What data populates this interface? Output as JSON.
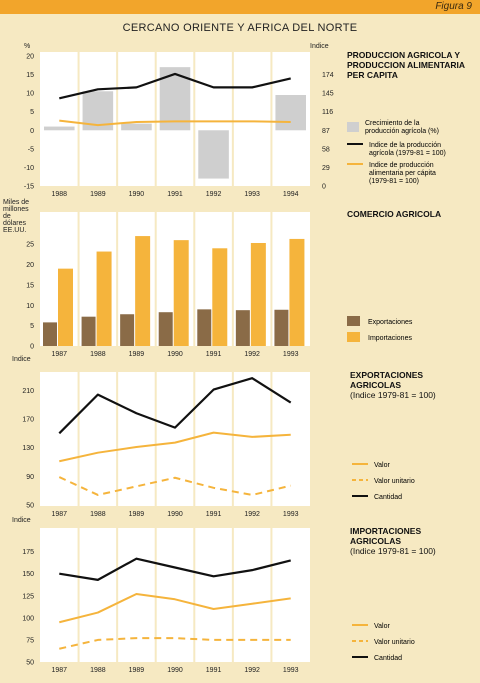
{
  "figure_label": "Figura 9",
  "page_title": "CERCANO ORIENTE Y AFRICA DEL NORTE",
  "colors": {
    "background": "#f6e9c2",
    "panel": "#ffffff",
    "header": "#f2a52b",
    "gray_bar": "#cfcfcf",
    "black": "#111111",
    "orange": "#f5b43c",
    "brown": "#8a6b47"
  },
  "chart_data": [
    {
      "type": "bar+line",
      "title_lines": [
        "PRODUCCION AGRICOLA Y",
        "PRODUCCION ALIMENTARIA",
        "PER CAPITA"
      ],
      "left_unit": "%",
      "right_unit": "Indice",
      "categories": [
        "1988",
        "1989",
        "1990",
        "1991",
        "1992",
        "1993",
        "1994"
      ],
      "left_ticks": [
        "20",
        "15",
        "10",
        "5",
        "0",
        "-5",
        "-10",
        "-15"
      ],
      "right_ticks": [
        "174",
        "145",
        "116",
        "87",
        "58",
        "29",
        "0"
      ],
      "ylim_left": [
        -15,
        20
      ],
      "ylim_right": [
        0,
        203
      ],
      "series": [
        {
          "name": "Crecimiento de la producción agrícola (%)",
          "kind": "bar",
          "axis": "left",
          "color": "#cfcfcf",
          "values": [
            1,
            10.5,
            1.8,
            17,
            -13,
            0,
            9.5
          ]
        },
        {
          "name": "Indice de la producción agrícola (1979-81 = 100)",
          "kind": "line",
          "axis": "right",
          "color": "#111111",
          "values": [
            137,
            151,
            154,
            175,
            154,
            154,
            168
          ]
        },
        {
          "name": "Indice de producción alimentaria per cápita (1979-81 = 100)",
          "kind": "line",
          "axis": "right",
          "color": "#f5b43c",
          "values": [
            102,
            95,
            100,
            101,
            101,
            101,
            100
          ]
        }
      ]
    },
    {
      "type": "bar",
      "title_lines": [
        "COMERCIO AGRICOLA"
      ],
      "left_unit_lines": [
        "Miles de",
        "millones",
        "de",
        "dólares",
        "EE.UU."
      ],
      "categories": [
        "1987",
        "1988",
        "1989",
        "1990",
        "1991",
        "1992",
        "1993"
      ],
      "left_ticks": [
        "25",
        "20",
        "15",
        "10",
        "5",
        "0"
      ],
      "ylim": [
        0,
        28
      ],
      "series": [
        {
          "name": "Exportaciones",
          "color": "#8a6b47",
          "values": [
            5.8,
            7.2,
            7.8,
            8.3,
            9.0,
            8.8,
            8.9
          ]
        },
        {
          "name": "Importaciones",
          "color": "#f5b43c",
          "values": [
            19,
            23.2,
            27,
            26,
            24,
            25.3,
            26.3
          ]
        }
      ]
    },
    {
      "type": "line",
      "title_lines": [
        "EXPORTACIONES",
        "AGRICOLAS"
      ],
      "subtitle": "(Indice 1979-81 = 100)",
      "left_unit": "Indice",
      "categories": [
        "1987",
        "1988",
        "1989",
        "1990",
        "1991",
        "1992",
        "1993"
      ],
      "left_ticks": [
        "210",
        "170",
        "130",
        "90",
        "50"
      ],
      "ylim": [
        50,
        230
      ],
      "series": [
        {
          "name": "Valor",
          "style": "solid",
          "color": "#f5b43c",
          "values": [
            111,
            123,
            131,
            137,
            151,
            145,
            148
          ]
        },
        {
          "name": "Valor unitario",
          "style": "dashed",
          "color": "#f5b43c",
          "values": [
            89,
            64,
            76,
            88,
            74,
            64,
            77
          ]
        },
        {
          "name": "Cantidad",
          "style": "solid",
          "color": "#111111",
          "values": [
            150,
            204,
            178,
            158,
            211,
            227,
            193
          ]
        }
      ]
    },
    {
      "type": "line",
      "title_lines": [
        "IMPORTACIONES",
        "AGRICOLAS"
      ],
      "subtitle": "(Indice 1979-81 = 100)",
      "left_unit": "Indice",
      "categories": [
        "1987",
        "1988",
        "1989",
        "1990",
        "1991",
        "1992",
        "1993"
      ],
      "left_ticks": [
        "175",
        "150",
        "125",
        "100",
        "75",
        "50"
      ],
      "ylim": [
        50,
        187
      ],
      "series": [
        {
          "name": "Valor",
          "style": "solid",
          "color": "#f5b43c",
          "values": [
            95,
            106,
            127,
            121,
            110,
            116,
            122
          ]
        },
        {
          "name": "Valor unitario",
          "style": "dashed",
          "color": "#f5b43c",
          "values": [
            65,
            75,
            77,
            77,
            75,
            75,
            75
          ]
        },
        {
          "name": "Cantidad",
          "style": "solid",
          "color": "#111111",
          "values": [
            150,
            143,
            167,
            157,
            147,
            154,
            165
          ]
        }
      ]
    }
  ]
}
